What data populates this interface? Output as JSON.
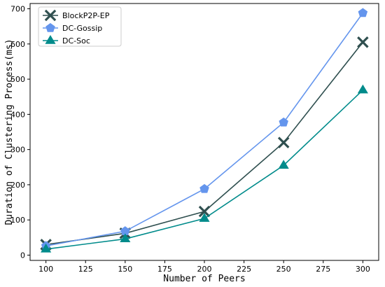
{
  "chart_data": {
    "type": "line",
    "title": "",
    "xlabel": "Number of Peers",
    "ylabel": "Duration of Clustering Process(ms)",
    "x": [
      100,
      150,
      200,
      250,
      300
    ],
    "xlim": [
      90,
      310
    ],
    "ylim": [
      -15,
      715
    ],
    "xticks": [
      100,
      125,
      150,
      175,
      200,
      225,
      250,
      275,
      300
    ],
    "yticks": [
      0,
      100,
      200,
      300,
      400,
      500,
      600,
      700
    ],
    "grid": false,
    "legend_position": "top-left",
    "series": [
      {
        "name": "BlockP2P-EP",
        "color": "#2f4f4f",
        "marker": "x-thick",
        "values": [
          30,
          62,
          124,
          320,
          605
        ]
      },
      {
        "name": "DC-Gossip",
        "color": "#6495ed",
        "marker": "pentagon",
        "values": [
          26,
          68,
          188,
          377,
          688
        ]
      },
      {
        "name": "DC-Soc",
        "color": "#008b8b",
        "marker": "triangle",
        "values": [
          17,
          46,
          104,
          255,
          469
        ]
      }
    ]
  }
}
